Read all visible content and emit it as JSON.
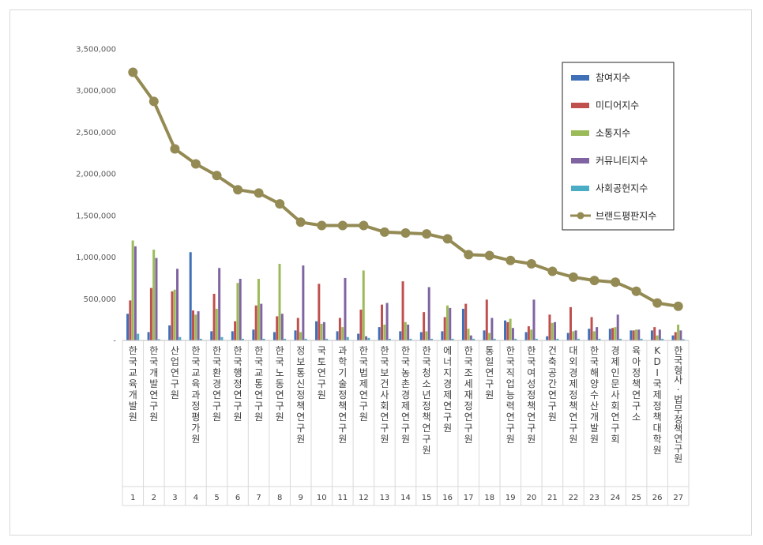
{
  "chart_data": {
    "type": "bar",
    "title": "",
    "xlabel": "",
    "ylabel": "",
    "ylim": [
      0,
      3500000
    ],
    "yticks": [
      0,
      500000,
      1000000,
      1500000,
      2000000,
      2500000,
      3000000,
      3500000
    ],
    "ytick_labels": [
      "-",
      "500,000",
      "1,000,000",
      "1,500,000",
      "2,000,000",
      "2,500,000",
      "3,000,000",
      "3,500,000"
    ],
    "grid": false,
    "legend_position": "top-right",
    "ranks": [
      "1",
      "2",
      "3",
      "4",
      "5",
      "6",
      "7",
      "8",
      "9",
      "10",
      "11",
      "12",
      "13",
      "14",
      "15",
      "16",
      "17",
      "18",
      "19",
      "20",
      "21",
      "22",
      "23",
      "24",
      "25",
      "26",
      "27"
    ],
    "categories": [
      "한국교육개발원",
      "한국개발연구원",
      "산업연구원",
      "한국교육과정평가원",
      "한국환경연구원",
      "한국행정연구원",
      "한국교통연구원",
      "한국노동연구원",
      "정보통신정책연구원",
      "국토연구원",
      "과학기술정책연구원",
      "한국법제연구원",
      "한국보건사회연구원",
      "한국농촌경제연구원",
      "한국청소년정책연구원",
      "에너지경제연구원",
      "한국조세재정연구원",
      "통일연구원",
      "한국직업능력연구원",
      "한국여성정책연구원",
      "건축공간연구원",
      "대외경제정책연구원",
      "한국해양수산개발원",
      "경제인문사회연구회",
      "육아정책연구소",
      "KDI국제정책대학원",
      "한국형사·법무정책연구원"
    ],
    "series": [
      {
        "name": "참여지수",
        "kind": "bar",
        "color": "#3f6fb7",
        "values": [
          320000,
          100000,
          180000,
          1060000,
          110000,
          110000,
          130000,
          100000,
          120000,
          230000,
          110000,
          80000,
          160000,
          110000,
          100000,
          110000,
          380000,
          120000,
          240000,
          100000,
          50000,
          90000,
          140000,
          140000,
          120000,
          120000,
          60000
        ]
      },
      {
        "name": "미디어지수",
        "kind": "bar",
        "color": "#c0504d",
        "values": [
          480000,
          630000,
          590000,
          360000,
          560000,
          230000,
          420000,
          290000,
          270000,
          680000,
          270000,
          370000,
          430000,
          710000,
          340000,
          280000,
          440000,
          490000,
          220000,
          170000,
          310000,
          400000,
          280000,
          150000,
          120000,
          160000,
          100000
        ]
      },
      {
        "name": "소통지수",
        "kind": "bar",
        "color": "#9bbb59",
        "values": [
          1200000,
          1090000,
          610000,
          310000,
          380000,
          690000,
          740000,
          920000,
          100000,
          200000,
          160000,
          840000,
          190000,
          220000,
          110000,
          420000,
          140000,
          90000,
          260000,
          130000,
          210000,
          110000,
          110000,
          160000,
          130000,
          60000,
          190000
        ]
      },
      {
        "name": "커뮤니티지수",
        "kind": "bar",
        "color": "#8064a2",
        "values": [
          1130000,
          990000,
          860000,
          350000,
          870000,
          740000,
          440000,
          320000,
          900000,
          220000,
          750000,
          50000,
          450000,
          190000,
          640000,
          390000,
          60000,
          270000,
          150000,
          490000,
          220000,
          120000,
          160000,
          310000,
          130000,
          130000,
          120000
        ]
      },
      {
        "name": "사회공헌지수",
        "kind": "bar",
        "color": "#4bacc6",
        "values": [
          80000,
          15000,
          40000,
          20000,
          40000,
          20000,
          20000,
          20000,
          20000,
          20000,
          40000,
          30000,
          20000,
          20000,
          20000,
          20000,
          20000,
          20000,
          20000,
          20000,
          20000,
          20000,
          20000,
          20000,
          20000,
          20000,
          15000
        ]
      },
      {
        "name": "브랜드평판지수",
        "kind": "line",
        "color": "#948a54",
        "values": [
          3220000,
          2870000,
          2300000,
          2120000,
          1980000,
          1810000,
          1770000,
          1640000,
          1420000,
          1380000,
          1380000,
          1380000,
          1300000,
          1290000,
          1280000,
          1220000,
          1030000,
          1020000,
          960000,
          920000,
          830000,
          760000,
          720000,
          700000,
          590000,
          450000,
          410000
        ]
      }
    ]
  }
}
